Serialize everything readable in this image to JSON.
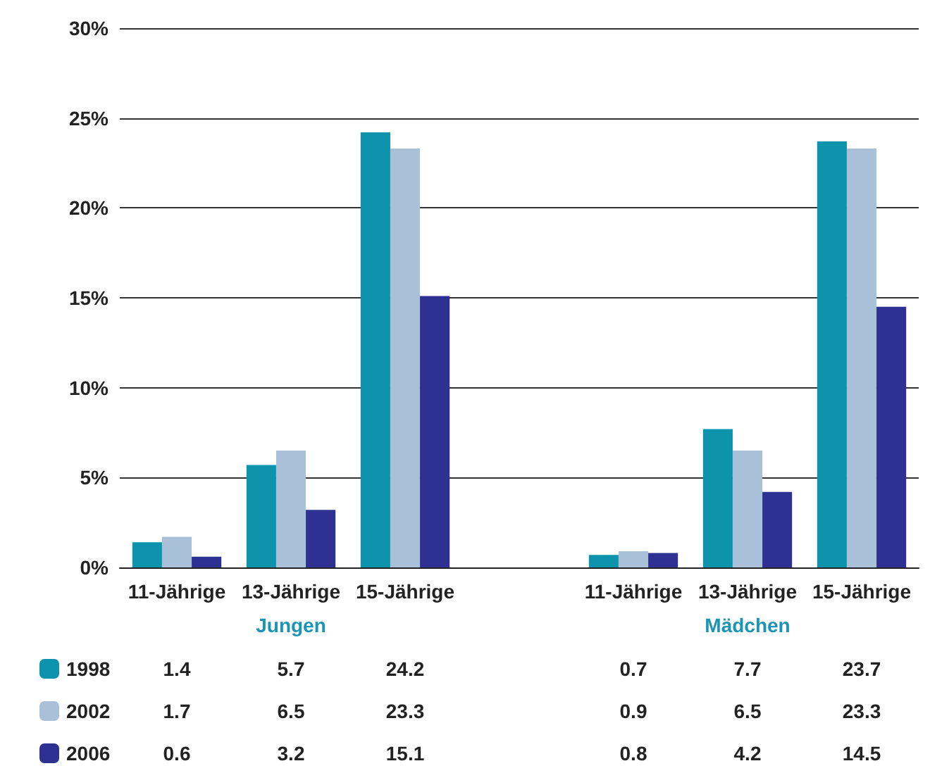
{
  "chart_data": {
    "type": "bar",
    "categories": [
      "11-Jährige",
      "13-Jährige",
      "15-Jährige",
      null,
      "11-Jährige",
      "13-Jährige",
      "15-Jährige"
    ],
    "series": [
      {
        "name": "1998",
        "color": "#0e93ad",
        "values": [
          1.4,
          5.7,
          24.2,
          null,
          0.7,
          7.7,
          23.7
        ]
      },
      {
        "name": "2002",
        "color": "#a8c0d8",
        "values": [
          1.7,
          6.5,
          23.3,
          null,
          0.9,
          6.5,
          23.3
        ]
      },
      {
        "name": "2006",
        "color": "#2e3192",
        "values": [
          0.6,
          3.2,
          15.1,
          null,
          0.8,
          4.2,
          14.5
        ]
      }
    ],
    "ylim": [
      0,
      30
    ],
    "yticks": [
      {
        "value": 0,
        "label": "0%"
      },
      {
        "value": 5,
        "label": "5%"
      },
      {
        "value": 10,
        "label": "10%"
      },
      {
        "value": 15,
        "label": "15%"
      },
      {
        "value": 20,
        "label": "20%"
      },
      {
        "value": 25,
        "label": "25%"
      },
      {
        "value": 30,
        "label": "30%"
      }
    ],
    "annotations": [
      "Jungen",
      "Mädchen"
    ],
    "grid": "y",
    "legend": "bottom left",
    "data_labels": true
  }
}
